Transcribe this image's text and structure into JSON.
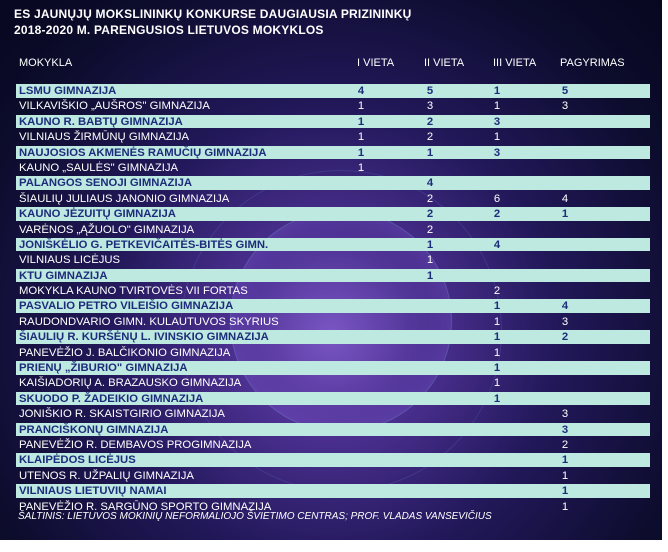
{
  "title_line1": "ES JAUNŲJŲ MOKSLININKŲ KONKURSE DAUGIAUSIA PRIZININKŲ",
  "title_line2": "2018-2020 M. PARENGUSIOS LIETUVOS MOKYKLOS",
  "source": "ŠALTINIS: LIETUVOS MOKINIŲ NEFORMALIOJO ŠVIETIMO CENTRAS; PROF. VLADAS VANSEVIČIUS",
  "chart_data": {
    "type": "table",
    "columns": [
      "MOKYKLA",
      "I VIETA",
      "II VIETA",
      "III VIETA",
      "PAGYRIMAS"
    ],
    "rows": [
      {
        "school": "LSMU GIMNAZIJA",
        "v1": "4",
        "v2": "5",
        "v3": "1",
        "pag": "5",
        "style": "light"
      },
      {
        "school": "VILKAVIŠKIO „AUŠROS\" GIMNAZIJA",
        "v1": "1",
        "v2": "3",
        "v3": "1",
        "pag": "3",
        "style": "dark"
      },
      {
        "school": "KAUNO R. BABTŲ GIMNAZIJA",
        "v1": "1",
        "v2": "2",
        "v3": "3",
        "pag": "",
        "style": "light"
      },
      {
        "school": "VILNIAUS ŽIRMŪNŲ GIMNAZIJA",
        "v1": "1",
        "v2": "2",
        "v3": "1",
        "pag": "",
        "style": "dark"
      },
      {
        "school": "NAUJOSIOS AKMENĖS RAMUČIŲ GIMNAZIJA",
        "v1": "1",
        "v2": "1",
        "v3": "3",
        "pag": "",
        "style": "light"
      },
      {
        "school": "KAUNO „SAULĖS\" GIMNAZIJA",
        "v1": "1",
        "v2": "",
        "v3": "",
        "pag": "",
        "style": "dark"
      },
      {
        "school": "PALANGOS SENOJI GIMNAZIJA",
        "v1": "",
        "v2": "4",
        "v3": "",
        "pag": "",
        "style": "light"
      },
      {
        "school": "ŠIAULIŲ JULIAUS JANONIO GIMNAZIJA",
        "v1": "",
        "v2": "2",
        "v3": "6",
        "pag": "4",
        "style": "dark"
      },
      {
        "school": "KAUNO JĖZUITŲ GIMNAZIJA",
        "v1": "",
        "v2": "2",
        "v3": "2",
        "pag": "1",
        "style": "light"
      },
      {
        "school": "VARĖNOS „ĄŽUOLO\" GIMNAZIJA",
        "v1": "",
        "v2": "2",
        "v3": "",
        "pag": "",
        "style": "dark"
      },
      {
        "school": "JONIŠKĖLIO G. PETKEVIČAITĖS-BITĖS GIMN.",
        "v1": "",
        "v2": "1",
        "v3": "4",
        "pag": "",
        "style": "light"
      },
      {
        "school": "VILNIAUS LICĖJUS",
        "v1": "",
        "v2": "1",
        "v3": "",
        "pag": "",
        "style": "dark"
      },
      {
        "school": "KTU GIMNAZIJA",
        "v1": "",
        "v2": "1",
        "v3": "",
        "pag": "",
        "style": "light"
      },
      {
        "school": "MOKYKLA KAUNO TVIRTOVĖS VII FORTAS",
        "v1": "",
        "v2": "",
        "v3": "2",
        "pag": "",
        "style": "dark"
      },
      {
        "school": "PASVALIO PETRO VILEIŠIO GIMNAZIJA",
        "v1": "",
        "v2": "",
        "v3": "1",
        "pag": "4",
        "style": "light"
      },
      {
        "school": "RAUDONDVARIO GIMN. KULAUTUVOS SKYRIUS",
        "v1": "",
        "v2": "",
        "v3": "1",
        "pag": "3",
        "style": "dark"
      },
      {
        "school": "ŠIAULIŲ R. KURŠĖNŲ L. IVINSKIO GIMNAZIJA",
        "v1": "",
        "v2": "",
        "v3": "1",
        "pag": "2",
        "style": "light"
      },
      {
        "school": "PANEVĖŽIO J. BALČIKONIO GIMNAZIJA",
        "v1": "",
        "v2": "",
        "v3": "1",
        "pag": "",
        "style": "dark"
      },
      {
        "school": "PRIENŲ „ŽIBURIO\" GIMNAZIJA",
        "v1": "",
        "v2": "",
        "v3": "1",
        "pag": "",
        "style": "light"
      },
      {
        "school": "KAIŠIADORIŲ A. BRAZAUSKO GIMNAZIJA",
        "v1": "",
        "v2": "",
        "v3": "1",
        "pag": "",
        "style": "dark"
      },
      {
        "school": "SKUODO P. ŽADEIKIO GIMNAZIJA",
        "v1": "",
        "v2": "",
        "v3": "1",
        "pag": "",
        "style": "light"
      },
      {
        "school": "JONIŠKIO R. SKAISTGIRIO GIMNAZIJA",
        "v1": "",
        "v2": "",
        "v3": "",
        "pag": "3",
        "style": "dark"
      },
      {
        "school": "PRANCIŠKONŲ GIMNAZIJA",
        "v1": "",
        "v2": "",
        "v3": "",
        "pag": "3",
        "style": "light"
      },
      {
        "school": "PANEVĖŽIO R. DEMBAVOS PROGIMNAZIJA",
        "v1": "",
        "v2": "",
        "v3": "",
        "pag": "2",
        "style": "dark"
      },
      {
        "school": "KLAIPĖDOS LICĖJUS",
        "v1": "",
        "v2": "",
        "v3": "",
        "pag": "1",
        "style": "light"
      },
      {
        "school": "UTENOS R. UŽPALIŲ GIMNAZIJA",
        "v1": "",
        "v2": "",
        "v3": "",
        "pag": "1",
        "style": "dark"
      },
      {
        "school": "VILNIAUS LIETUVIŲ NAMAI",
        "v1": "",
        "v2": "",
        "v3": "",
        "pag": "1",
        "style": "light"
      },
      {
        "school": "PANEVĖŽIO R. SARGŪNO SPORTO GIMNAZIJA",
        "v1": "",
        "v2": "",
        "v3": "",
        "pag": "1",
        "style": "dark"
      }
    ]
  }
}
